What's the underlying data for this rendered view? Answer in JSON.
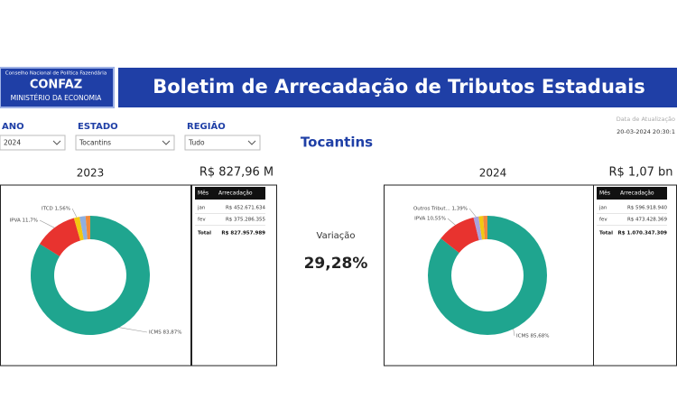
{
  "header": {
    "org_line1": "Conselho Nacional de Política Fazendária",
    "org_name": "CONFAZ",
    "org_line2": "MINISTÉRIO DA ECONOMIA",
    "title": "Boletim de Arrecadação de Tributos Estaduais"
  },
  "filters": [
    {
      "label": "ANO",
      "value": "2024"
    },
    {
      "label": "ESTADO",
      "value": "Tocantins"
    },
    {
      "label": "REGIÃO",
      "value": "Tudo"
    }
  ],
  "update": {
    "label": "Data de Atualização",
    "value": "20-03-2024 20:30:1"
  },
  "state": "Tocantins",
  "variation": {
    "label": "Variação",
    "value": "29,28%"
  },
  "panels": [
    {
      "year": "2023",
      "total": "R$ 827,96 M",
      "donut": {
        "slices": [
          {
            "label": "ICMS 83,87%",
            "value": 83.87,
            "color": "#1fa58f"
          },
          {
            "label": "IPVA 11,7%",
            "value": 11.7,
            "color": "#e8332f"
          },
          {
            "label": "ITCD 1,56%",
            "value": 1.56,
            "color": "#f2c811"
          },
          {
            "label": null,
            "value": 1.6,
            "color": "#8fb0e0"
          },
          {
            "label": null,
            "value": 1.27,
            "color": "#f08a3c"
          }
        ]
      },
      "table": {
        "header": [
          "Mês",
          "Arrecadação"
        ],
        "rows": [
          [
            "jan",
            "R$ 452.671.634"
          ],
          [
            "fev",
            "R$ 375.286.355"
          ]
        ],
        "total": [
          "Total",
          "R$ 827.957.989"
        ]
      }
    },
    {
      "year": "2024",
      "total": "R$ 1,07 bn",
      "donut": {
        "slices": [
          {
            "label": "ICMS 85,68%",
            "value": 85.68,
            "color": "#1fa58f"
          },
          {
            "label": "IPVA 10,55%",
            "value": 10.55,
            "color": "#e8332f"
          },
          {
            "label": "Outros Tribut... 1,39%",
            "value": 1.39,
            "color": "#a9a3dd"
          },
          {
            "label": null,
            "value": 1.2,
            "color": "#f2c811"
          },
          {
            "label": null,
            "value": 1.18,
            "color": "#f08a3c"
          }
        ]
      },
      "table": {
        "header": [
          "Mês",
          "Arrecadação"
        ],
        "rows": [
          [
            "jan",
            "R$ 596.918.940"
          ],
          [
            "fev",
            "R$ 473.428.369"
          ]
        ],
        "total": [
          "Total",
          "R$ 1.070.347.309"
        ]
      }
    }
  ]
}
